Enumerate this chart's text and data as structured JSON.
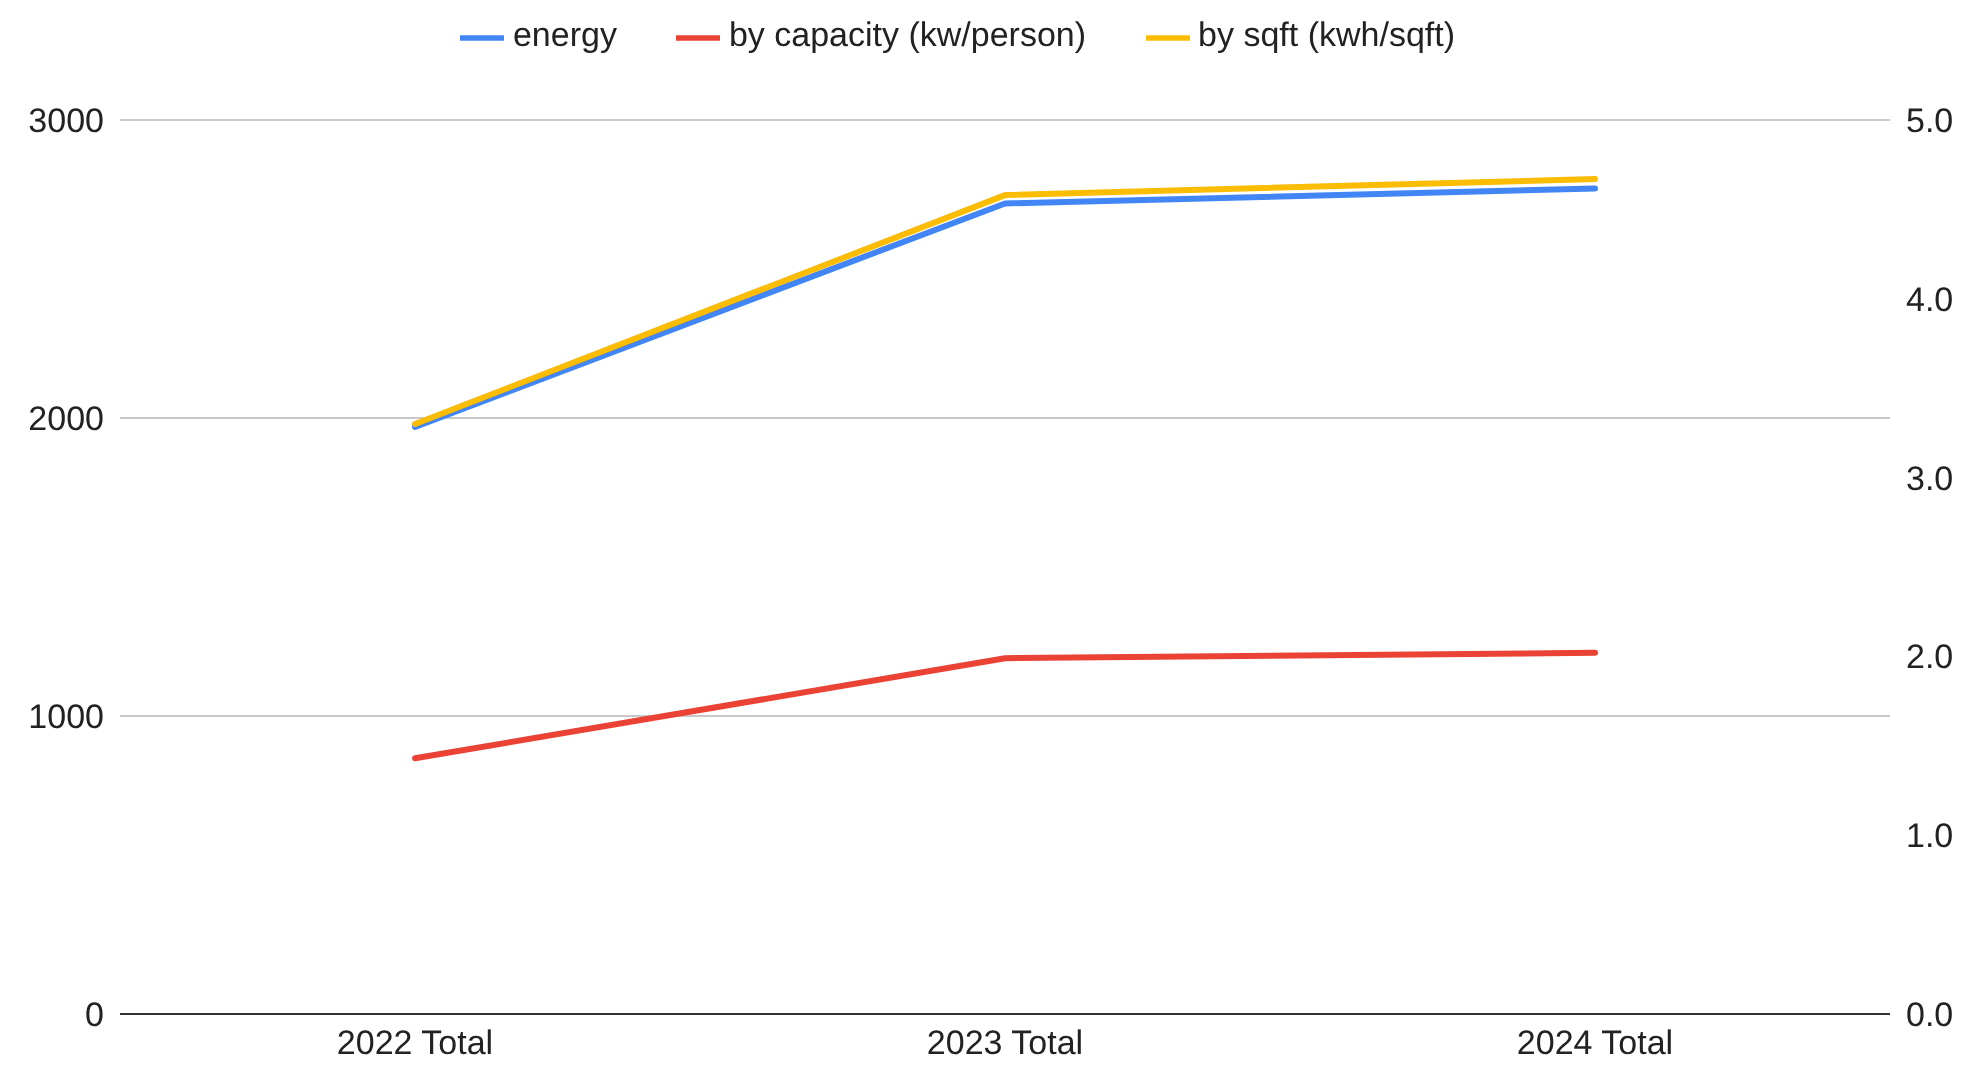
{
  "chart_data": {
    "type": "line",
    "categories": [
      "2022 Total",
      "2023 Total",
      "2024 Total"
    ],
    "series": [
      {
        "name": "energy",
        "color": "#4285f4",
        "values": [
          1970,
          2720,
          2770
        ]
      },
      {
        "name": "by capacity (kw/person)",
        "color": "#ea4335",
        "values": [
          1.43,
          1.99,
          2.02
        ],
        "axis": "y2"
      },
      {
        "name": "by sqft (kwh/sqft)",
        "color": "#fbbc04",
        "values": [
          3.3,
          4.58,
          4.67
        ],
        "axis": "y2"
      }
    ],
    "ylim": [
      0,
      3000
    ],
    "yticks": [
      0,
      1000,
      2000,
      3000
    ],
    "y2lim": [
      0,
      5
    ],
    "y2ticks": [
      {
        "value": 0,
        "label": "0.0"
      },
      {
        "value": 1,
        "label": "1.0"
      },
      {
        "value": 2,
        "label": "2.0"
      },
      {
        "value": 3,
        "label": "3.0"
      },
      {
        "value": 4,
        "label": "4.0"
      },
      {
        "value": 5,
        "label": "5.0"
      }
    ],
    "grid": "y",
    "legend": "top",
    "marker": "none",
    "line_style": "solid"
  }
}
